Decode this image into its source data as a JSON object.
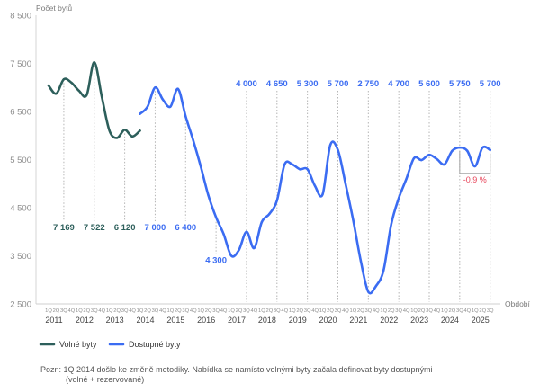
{
  "chart_data": {
    "type": "line",
    "ylabel": "Počet bytů",
    "xlabel": "Období",
    "ylim": [
      2500,
      8500
    ],
    "grid": false,
    "legend_position": "bottom-left",
    "y_axis": {
      "ticks": [
        {
          "value": 8500,
          "label": "8 500"
        },
        {
          "value": 7500,
          "label": "7 500"
        },
        {
          "value": 6500,
          "label": "6 500"
        },
        {
          "value": 5500,
          "label": "5 500"
        },
        {
          "value": 4500,
          "label": "4 500"
        },
        {
          "value": 3500,
          "label": "3 500"
        },
        {
          "value": 2500,
          "label": "2 500"
        }
      ]
    },
    "x_axis": {
      "groups": [
        {
          "year": "2011",
          "quarters": [
            "1Q",
            "2Q",
            "3Q",
            "4Q"
          ]
        },
        {
          "year": "2012",
          "quarters": [
            "1Q",
            "2Q",
            "3Q",
            "4Q"
          ]
        },
        {
          "year": "2013",
          "quarters": [
            "1Q",
            "2Q",
            "3Q",
            "4Q"
          ]
        },
        {
          "year": "2014",
          "quarters": [
            "1Q",
            "2Q",
            "3Q",
            "4Q"
          ]
        },
        {
          "year": "2015",
          "quarters": [
            "1Q",
            "2Q",
            "3Q",
            "4Q"
          ]
        },
        {
          "year": "2016",
          "quarters": [
            "1Q",
            "2Q",
            "3Q",
            "4Q"
          ]
        },
        {
          "year": "2017",
          "quarters": [
            "1Q",
            "2Q",
            "3Q",
            "4Q"
          ]
        },
        {
          "year": "2018",
          "quarters": [
            "1Q",
            "2Q",
            "3Q",
            "4Q"
          ]
        },
        {
          "year": "2019",
          "quarters": [
            "1Q",
            "2Q",
            "3Q",
            "4Q"
          ]
        },
        {
          "year": "2020",
          "quarters": [
            "1Q",
            "2Q",
            "3Q",
            "4Q"
          ]
        },
        {
          "year": "2021",
          "quarters": [
            "1Q",
            "2Q",
            "3Q",
            "4Q"
          ]
        },
        {
          "year": "2022",
          "quarters": [
            "1Q",
            "2Q",
            "3Q",
            "4Q"
          ]
        },
        {
          "year": "2023",
          "quarters": [
            "1Q",
            "2Q",
            "3Q",
            "4Q"
          ]
        },
        {
          "year": "2024",
          "quarters": [
            "1Q",
            "2Q",
            "3Q",
            "4Q"
          ]
        },
        {
          "year": "2025",
          "quarters": [
            "1Q",
            "2Q",
            "3Q"
          ]
        }
      ]
    },
    "series": [
      {
        "name": "Volné byty",
        "color": "#2d5f5b",
        "values": [
          7040,
          6870,
          7169,
          7100,
          6930,
          6840,
          7522,
          6800,
          6100,
          5950,
          6120,
          5980,
          6100,
          null,
          null,
          null,
          null,
          null,
          null,
          null,
          null,
          null,
          null,
          null,
          null,
          null,
          null,
          null,
          null,
          null,
          null,
          null,
          null,
          null,
          null,
          null,
          null,
          null,
          null,
          null,
          null,
          null,
          null,
          null,
          null,
          null,
          null,
          null,
          null,
          null,
          null,
          null,
          null,
          null,
          null,
          null,
          null,
          null,
          null
        ],
        "labels": [
          {
            "year": "2011",
            "quarter": "3Q",
            "text": "7 169",
            "position": "bottom"
          },
          {
            "year": "2012",
            "quarter": "3Q",
            "text": "7 522",
            "position": "bottom"
          },
          {
            "year": "2013",
            "quarter": "3Q",
            "text": "6 120",
            "position": "bottom"
          }
        ]
      },
      {
        "name": "Dostupné byty",
        "color": "#3b6cf2",
        "values": [
          null,
          null,
          null,
          null,
          null,
          null,
          null,
          null,
          null,
          null,
          null,
          null,
          6450,
          6600,
          7000,
          6750,
          6600,
          6970,
          6400,
          5900,
          5350,
          4750,
          4300,
          3950,
          3500,
          3620,
          4000,
          3660,
          4200,
          4370,
          4650,
          5400,
          5400,
          5300,
          5300,
          4950,
          4780,
          5800,
          5700,
          5000,
          4250,
          3400,
          2750,
          2870,
          3200,
          4150,
          4700,
          5100,
          5530,
          5490,
          5600,
          5510,
          5400,
          5680,
          5750,
          5680,
          5360,
          5750,
          5700
        ],
        "labels": [
          {
            "year": "2014",
            "quarter": "3Q",
            "text": "7 000",
            "position": "bottom"
          },
          {
            "year": "2015",
            "quarter": "3Q",
            "text": "6 400",
            "position": "bottom"
          },
          {
            "year": "2016",
            "quarter": "3Q",
            "text": "4 300",
            "position": "below"
          },
          {
            "year": "2017",
            "quarter": "3Q",
            "text": "4 000",
            "position": "top"
          },
          {
            "year": "2018",
            "quarter": "3Q",
            "text": "4 650",
            "position": "top"
          },
          {
            "year": "2019",
            "quarter": "3Q",
            "text": "5 300",
            "position": "top"
          },
          {
            "year": "2020",
            "quarter": "3Q",
            "text": "5 700",
            "position": "top"
          },
          {
            "year": "2021",
            "quarter": "3Q",
            "text": "2 750",
            "position": "top"
          },
          {
            "year": "2022",
            "quarter": "3Q",
            "text": "4 700",
            "position": "top"
          },
          {
            "year": "2023",
            "quarter": "3Q",
            "text": "5 600",
            "position": "top"
          },
          {
            "year": "2024",
            "quarter": "3Q",
            "text": "5 750",
            "position": "top"
          },
          {
            "year": "2025",
            "quarter": "3Q",
            "text": "5 700",
            "position": "top"
          }
        ]
      }
    ],
    "change_annotation": {
      "text": "-0.9 %",
      "color": "#e8465b",
      "series": "Dostupné byty",
      "from": {
        "year": "2024",
        "quarter": "3Q"
      },
      "to": {
        "year": "2025",
        "quarter": "3Q"
      }
    },
    "note": [
      "Pozn: 1Q 2014 došlo ke změně metodiky. Nabídka se namísto volnými byty začala definovat byty dostupnými",
      "(volné + rezervované)"
    ]
  }
}
